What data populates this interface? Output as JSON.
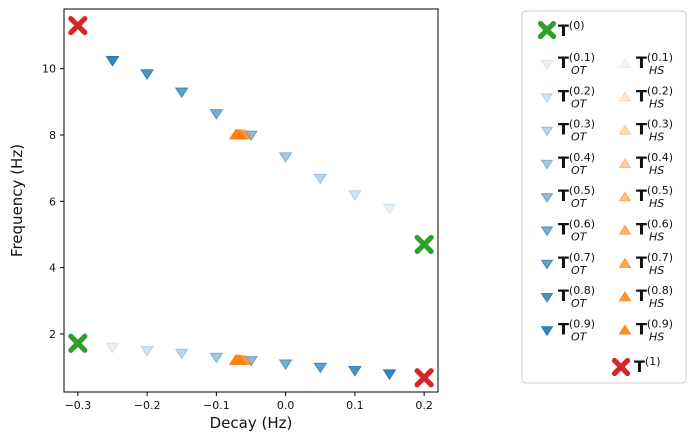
{
  "chart_data": {
    "type": "scatter",
    "xlabel": "Decay (Hz)",
    "ylabel": "Frequency (Hz)",
    "xlim": [
      -0.32,
      0.22
    ],
    "ylim": [
      0.25,
      11.8
    ],
    "xticks": [
      {
        "value": -0.3,
        "label": "−0.3"
      },
      {
        "value": -0.2,
        "label": "−0.2"
      },
      {
        "value": -0.1,
        "label": "−0.1"
      },
      {
        "value": 0.0,
        "label": "0.0"
      },
      {
        "value": 0.1,
        "label": "0.1"
      },
      {
        "value": 0.2,
        "label": "0.2"
      }
    ],
    "yticks": [
      {
        "value": 2,
        "label": "2"
      },
      {
        "value": 4,
        "label": "4"
      },
      {
        "value": 6,
        "label": "6"
      },
      {
        "value": 8,
        "label": "8"
      },
      {
        "value": 10,
        "label": "10"
      }
    ],
    "colors": {
      "ot": "#1f77b4",
      "hs": "#ff7f0e",
      "start": "#2ca02c",
      "end": "#d62728"
    },
    "series": [
      {
        "name": "T(0)",
        "kind": "start",
        "points": [
          {
            "x": -0.3,
            "y": 1.72
          },
          {
            "x": 0.2,
            "y": 4.7
          }
        ]
      },
      {
        "name": "T(1)",
        "kind": "end",
        "points": [
          {
            "x": -0.3,
            "y": 11.3
          },
          {
            "x": 0.2,
            "y": 0.68
          }
        ]
      },
      {
        "name": "T_OT(0.1)",
        "kind": "ot",
        "alpha": 0.1,
        "points": [
          {
            "x": 0.15,
            "y": 5.8
          },
          {
            "x": -0.25,
            "y": 1.6
          }
        ]
      },
      {
        "name": "T_OT(0.2)",
        "kind": "ot",
        "alpha": 0.2,
        "points": [
          {
            "x": 0.1,
            "y": 6.2
          },
          {
            "x": -0.2,
            "y": 1.5
          }
        ]
      },
      {
        "name": "T_OT(0.3)",
        "kind": "ot",
        "alpha": 0.3,
        "points": [
          {
            "x": 0.05,
            "y": 6.7
          },
          {
            "x": -0.15,
            "y": 1.42
          }
        ]
      },
      {
        "name": "T_OT(0.4)",
        "kind": "ot",
        "alpha": 0.4,
        "points": [
          {
            "x": 0.0,
            "y": 7.35
          },
          {
            "x": -0.1,
            "y": 1.3
          }
        ]
      },
      {
        "name": "T_OT(0.5)",
        "kind": "ot",
        "alpha": 0.5,
        "points": [
          {
            "x": -0.05,
            "y": 8.0
          },
          {
            "x": -0.05,
            "y": 1.2
          }
        ]
      },
      {
        "name": "T_OT(0.6)",
        "kind": "ot",
        "alpha": 0.6,
        "points": [
          {
            "x": -0.1,
            "y": 8.65
          },
          {
            "x": 0.0,
            "y": 1.1
          }
        ]
      },
      {
        "name": "T_OT(0.7)",
        "kind": "ot",
        "alpha": 0.7,
        "points": [
          {
            "x": -0.15,
            "y": 9.3
          },
          {
            "x": 0.05,
            "y": 1.0
          }
        ]
      },
      {
        "name": "T_OT(0.8)",
        "kind": "ot",
        "alpha": 0.8,
        "points": [
          {
            "x": -0.2,
            "y": 9.85
          },
          {
            "x": 0.1,
            "y": 0.9
          }
        ]
      },
      {
        "name": "T_OT(0.9)",
        "kind": "ot",
        "alpha": 0.9,
        "points": [
          {
            "x": -0.25,
            "y": 10.25
          },
          {
            "x": 0.15,
            "y": 0.8
          }
        ]
      },
      {
        "name": "T_HS(0.1)",
        "kind": "hs",
        "alpha": 0.1,
        "points": [
          {
            "x": -0.056,
            "y": 8.0
          },
          {
            "x": -0.056,
            "y": 1.2
          }
        ]
      },
      {
        "name": "T_HS(0.2)",
        "kind": "hs",
        "alpha": 0.2,
        "points": [
          {
            "x": -0.058,
            "y": 8.0
          },
          {
            "x": -0.058,
            "y": 1.2
          }
        ]
      },
      {
        "name": "T_HS(0.3)",
        "kind": "hs",
        "alpha": 0.3,
        "points": [
          {
            "x": -0.06,
            "y": 8.0
          },
          {
            "x": -0.06,
            "y": 1.2
          }
        ]
      },
      {
        "name": "T_HS(0.4)",
        "kind": "hs",
        "alpha": 0.4,
        "points": [
          {
            "x": -0.062,
            "y": 8.0
          },
          {
            "x": -0.062,
            "y": 1.2
          }
        ]
      },
      {
        "name": "T_HS(0.5)",
        "kind": "hs",
        "alpha": 0.5,
        "points": [
          {
            "x": -0.064,
            "y": 8.0
          },
          {
            "x": -0.064,
            "y": 1.2
          }
        ]
      },
      {
        "name": "T_HS(0.6)",
        "kind": "hs",
        "alpha": 0.6,
        "points": [
          {
            "x": -0.066,
            "y": 8.0
          },
          {
            "x": -0.066,
            "y": 1.2
          }
        ]
      },
      {
        "name": "T_HS(0.7)",
        "kind": "hs",
        "alpha": 0.7,
        "points": [
          {
            "x": -0.068,
            "y": 8.0
          },
          {
            "x": -0.068,
            "y": 1.2
          }
        ]
      },
      {
        "name": "T_HS(0.8)",
        "kind": "hs",
        "alpha": 0.8,
        "points": [
          {
            "x": -0.07,
            "y": 8.0
          },
          {
            "x": -0.07,
            "y": 1.2
          }
        ]
      },
      {
        "name": "T_HS(0.9)",
        "kind": "hs",
        "alpha": 0.9,
        "points": [
          {
            "x": -0.072,
            "y": 8.0
          },
          {
            "x": -0.072,
            "y": 1.2
          }
        ]
      }
    ],
    "legend": {
      "placement": "right",
      "start": {
        "base": "T",
        "sup": "(0)"
      },
      "end": {
        "base": "T",
        "sup": "(1)"
      },
      "ot_entries": [
        {
          "base": "T",
          "sub": "OT",
          "sup": "(0.1)",
          "alpha": 0.1
        },
        {
          "base": "T",
          "sub": "OT",
          "sup": "(0.2)",
          "alpha": 0.2
        },
        {
          "base": "T",
          "sub": "OT",
          "sup": "(0.3)",
          "alpha": 0.3
        },
        {
          "base": "T",
          "sub": "OT",
          "sup": "(0.4)",
          "alpha": 0.4
        },
        {
          "base": "T",
          "sub": "OT",
          "sup": "(0.5)",
          "alpha": 0.5
        },
        {
          "base": "T",
          "sub": "OT",
          "sup": "(0.6)",
          "alpha": 0.6
        },
        {
          "base": "T",
          "sub": "OT",
          "sup": "(0.7)",
          "alpha": 0.7
        },
        {
          "base": "T",
          "sub": "OT",
          "sup": "(0.8)",
          "alpha": 0.8
        },
        {
          "base": "T",
          "sub": "OT",
          "sup": "(0.9)",
          "alpha": 0.9
        }
      ],
      "hs_entries": [
        {
          "base": "T",
          "sub": "HS",
          "sup": "(0.1)",
          "alpha": 0.1
        },
        {
          "base": "T",
          "sub": "HS",
          "sup": "(0.2)",
          "alpha": 0.2
        },
        {
          "base": "T",
          "sub": "HS",
          "sup": "(0.3)",
          "alpha": 0.3
        },
        {
          "base": "T",
          "sub": "HS",
          "sup": "(0.4)",
          "alpha": 0.4
        },
        {
          "base": "T",
          "sub": "HS",
          "sup": "(0.5)",
          "alpha": 0.5
        },
        {
          "base": "T",
          "sub": "HS",
          "sup": "(0.6)",
          "alpha": 0.6
        },
        {
          "base": "T",
          "sub": "HS",
          "sup": "(0.7)",
          "alpha": 0.7
        },
        {
          "base": "T",
          "sub": "HS",
          "sup": "(0.8)",
          "alpha": 0.8
        },
        {
          "base": "T",
          "sub": "HS",
          "sup": "(0.9)",
          "alpha": 0.9
        }
      ]
    }
  }
}
